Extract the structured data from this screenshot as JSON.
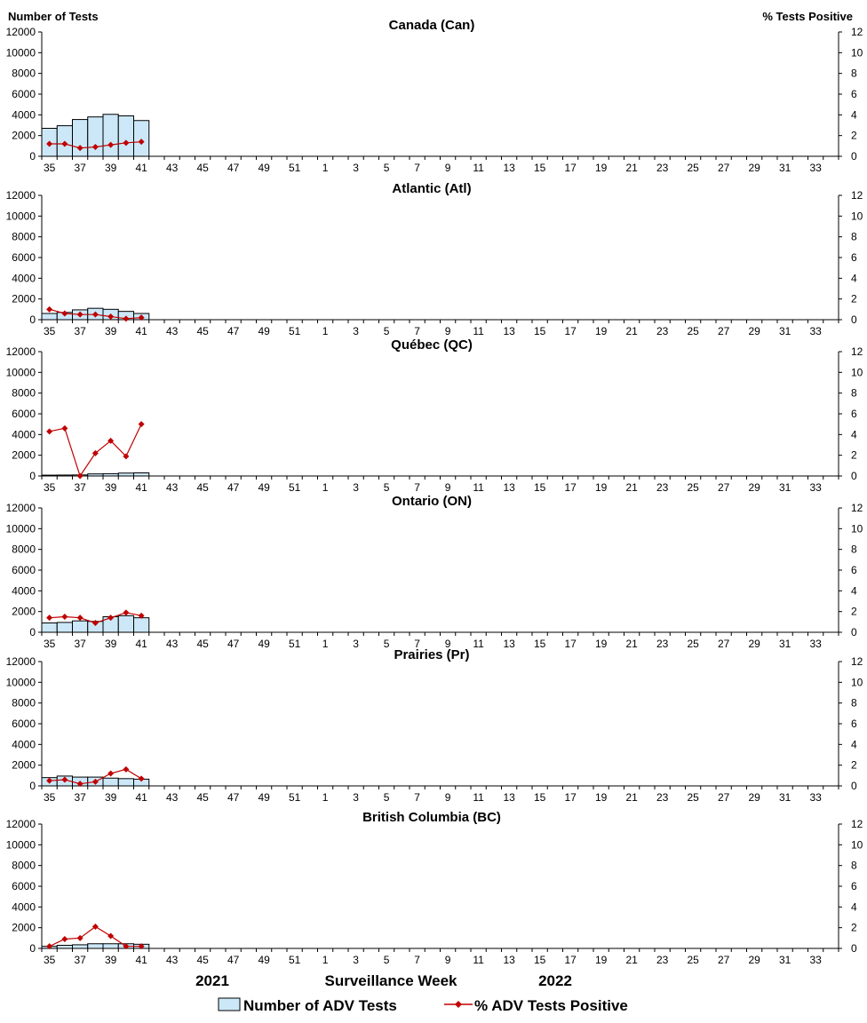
{
  "left_axis_title": "Number of Tests",
  "right_axis_title": "%  Tests Positive",
  "xlabel": "Surveillance Week",
  "year_labels": [
    "2021",
    "2022"
  ],
  "legend": [
    {
      "label": "Number of ADV Tests",
      "symbol": "bar"
    },
    {
      "label": "% ADV Tests Positive",
      "symbol": "line-diamond"
    }
  ],
  "colors": {
    "bar_fill": "#cce8f8",
    "bar_stroke": "#000000",
    "line": "#c00000",
    "axis": "#000000"
  },
  "chart_data": [
    {
      "type": "bar+line",
      "title": "Canada (Can)",
      "weeks": [
        35,
        36,
        37,
        38,
        39,
        40,
        41,
        42,
        43,
        44,
        45,
        46,
        47,
        48,
        49,
        50,
        51,
        52,
        1,
        2,
        3,
        4,
        5,
        6,
        7,
        8,
        9,
        10,
        11,
        12,
        13,
        14,
        15,
        16,
        17,
        18,
        19,
        20,
        21,
        22,
        23,
        24,
        25,
        26,
        27,
        28,
        29,
        30,
        31,
        32,
        33,
        34
      ],
      "xtick_labels": [
        "35",
        "37",
        "39",
        "41",
        "43",
        "45",
        "47",
        "49",
        "51",
        "1",
        "3",
        "5",
        "7",
        "9",
        "11",
        "13",
        "15",
        "17",
        "19",
        "21",
        "23",
        "25",
        "27",
        "29",
        "31",
        "33"
      ],
      "ylim_left": [
        0,
        12000
      ],
      "yticks_left": [
        0,
        2000,
        4000,
        6000,
        8000,
        10000,
        12000
      ],
      "ylim_right": [
        0,
        12
      ],
      "yticks_right": [
        0,
        2,
        4,
        6,
        8,
        10,
        12
      ],
      "series": [
        {
          "name": "Number of ADV Tests",
          "type": "bar",
          "values": [
            2700,
            2950,
            3550,
            3800,
            4050,
            3900,
            3450
          ]
        },
        {
          "name": "% ADV Tests Positive",
          "type": "line",
          "values": [
            1.2,
            1.2,
            0.8,
            0.9,
            1.1,
            1.3,
            1.4
          ]
        }
      ]
    },
    {
      "type": "bar+line",
      "title": "Atlantic (Atl)",
      "weeks": [
        35,
        36,
        37,
        38,
        39,
        40,
        41,
        42,
        43,
        44,
        45,
        46,
        47,
        48,
        49,
        50,
        51,
        52,
        1,
        2,
        3,
        4,
        5,
        6,
        7,
        8,
        9,
        10,
        11,
        12,
        13,
        14,
        15,
        16,
        17,
        18,
        19,
        20,
        21,
        22,
        23,
        24,
        25,
        26,
        27,
        28,
        29,
        30,
        31,
        32,
        33,
        34
      ],
      "xtick_labels": [
        "35",
        "37",
        "39",
        "41",
        "43",
        "45",
        "47",
        "49",
        "51",
        "1",
        "3",
        "5",
        "7",
        "9",
        "11",
        "13",
        "15",
        "17",
        "19",
        "21",
        "23",
        "25",
        "27",
        "29",
        "31",
        "33"
      ],
      "ylim_left": [
        0,
        12000
      ],
      "yticks_left": [
        0,
        2000,
        4000,
        6000,
        8000,
        10000,
        12000
      ],
      "ylim_right": [
        0,
        12
      ],
      "yticks_right": [
        0,
        2,
        4,
        6,
        8,
        10,
        12
      ],
      "series": [
        {
          "name": "Number of ADV Tests",
          "type": "bar",
          "values": [
            600,
            700,
            950,
            1100,
            1000,
            800,
            600
          ]
        },
        {
          "name": "% ADV Tests Positive",
          "type": "line",
          "values": [
            1.0,
            0.6,
            0.5,
            0.5,
            0.3,
            0.1,
            0.2
          ]
        }
      ]
    },
    {
      "type": "bar+line",
      "title": "Québec (QC)",
      "weeks": [
        35,
        36,
        37,
        38,
        39,
        40,
        41,
        42,
        43,
        44,
        45,
        46,
        47,
        48,
        49,
        50,
        51,
        52,
        1,
        2,
        3,
        4,
        5,
        6,
        7,
        8,
        9,
        10,
        11,
        12,
        13,
        14,
        15,
        16,
        17,
        18,
        19,
        20,
        21,
        22,
        23,
        24,
        25,
        26,
        27,
        28,
        29,
        30,
        31,
        32,
        33,
        34
      ],
      "xtick_labels": [
        "35",
        "37",
        "39",
        "41",
        "43",
        "45",
        "47",
        "49",
        "51",
        "1",
        "3",
        "5",
        "7",
        "9",
        "11",
        "13",
        "15",
        "17",
        "19",
        "21",
        "23",
        "25",
        "27",
        "29",
        "31",
        "33"
      ],
      "ylim_left": [
        0,
        12000
      ],
      "yticks_left": [
        0,
        2000,
        4000,
        6000,
        8000,
        10000,
        12000
      ],
      "ylim_right": [
        0,
        12
      ],
      "yticks_right": [
        0,
        2,
        4,
        6,
        8,
        10,
        12
      ],
      "series": [
        {
          "name": "Number of ADV Tests",
          "type": "bar",
          "values": [
            80,
            90,
            100,
            200,
            220,
            280,
            300
          ]
        },
        {
          "name": "% ADV Tests Positive",
          "type": "line",
          "values": [
            4.3,
            4.6,
            0.0,
            2.2,
            3.4,
            1.9,
            5.0
          ]
        }
      ]
    },
    {
      "type": "bar+line",
      "title": "Ontario (ON)",
      "weeks": [
        35,
        36,
        37,
        38,
        39,
        40,
        41,
        42,
        43,
        44,
        45,
        46,
        47,
        48,
        49,
        50,
        51,
        52,
        1,
        2,
        3,
        4,
        5,
        6,
        7,
        8,
        9,
        10,
        11,
        12,
        13,
        14,
        15,
        16,
        17,
        18,
        19,
        20,
        21,
        22,
        23,
        24,
        25,
        26,
        27,
        28,
        29,
        30,
        31,
        32,
        33,
        34
      ],
      "xtick_labels": [
        "35",
        "37",
        "39",
        "41",
        "43",
        "45",
        "47",
        "49",
        "51",
        "1",
        "3",
        "5",
        "7",
        "9",
        "11",
        "13",
        "15",
        "17",
        "19",
        "21",
        "23",
        "25",
        "27",
        "29",
        "31",
        "33"
      ],
      "ylim_left": [
        0,
        12000
      ],
      "yticks_left": [
        0,
        2000,
        4000,
        6000,
        8000,
        10000,
        12000
      ],
      "ylim_right": [
        0,
        12
      ],
      "yticks_right": [
        0,
        2,
        4,
        6,
        8,
        10,
        12
      ],
      "series": [
        {
          "name": "Number of ADV Tests",
          "type": "bar",
          "values": [
            900,
            950,
            1100,
            1050,
            1500,
            1600,
            1400
          ]
        },
        {
          "name": "% ADV Tests Positive",
          "type": "line",
          "values": [
            1.4,
            1.5,
            1.4,
            0.9,
            1.4,
            1.9,
            1.6
          ]
        }
      ]
    },
    {
      "type": "bar+line",
      "title": "Prairies (Pr)",
      "weeks": [
        35,
        36,
        37,
        38,
        39,
        40,
        41,
        42,
        43,
        44,
        45,
        46,
        47,
        48,
        49,
        50,
        51,
        52,
        1,
        2,
        3,
        4,
        5,
        6,
        7,
        8,
        9,
        10,
        11,
        12,
        13,
        14,
        15,
        16,
        17,
        18,
        19,
        20,
        21,
        22,
        23,
        24,
        25,
        26,
        27,
        28,
        29,
        30,
        31,
        32,
        33,
        34
      ],
      "xtick_labels": [
        "35",
        "37",
        "39",
        "41",
        "43",
        "45",
        "47",
        "49",
        "51",
        "1",
        "3",
        "5",
        "7",
        "9",
        "11",
        "13",
        "15",
        "17",
        "19",
        "21",
        "23",
        "25",
        "27",
        "29",
        "31",
        "33"
      ],
      "ylim_left": [
        0,
        12000
      ],
      "yticks_left": [
        0,
        2000,
        4000,
        6000,
        8000,
        10000,
        12000
      ],
      "ylim_right": [
        0,
        12
      ],
      "yticks_right": [
        0,
        2,
        4,
        6,
        8,
        10,
        12
      ],
      "series": [
        {
          "name": "Number of ADV Tests",
          "type": "bar",
          "values": [
            800,
            950,
            850,
            850,
            750,
            700,
            650
          ]
        },
        {
          "name": "% ADV Tests Positive",
          "type": "line",
          "values": [
            0.5,
            0.6,
            0.2,
            0.4,
            1.2,
            1.6,
            0.7
          ]
        }
      ]
    },
    {
      "type": "bar+line",
      "title": "British Columbia (BC)",
      "weeks": [
        35,
        36,
        37,
        38,
        39,
        40,
        41,
        42,
        43,
        44,
        45,
        46,
        47,
        48,
        49,
        50,
        51,
        52,
        1,
        2,
        3,
        4,
        5,
        6,
        7,
        8,
        9,
        10,
        11,
        12,
        13,
        14,
        15,
        16,
        17,
        18,
        19,
        20,
        21,
        22,
        23,
        24,
        25,
        26,
        27,
        28,
        29,
        30,
        31,
        32,
        33,
        34
      ],
      "xtick_labels": [
        "35",
        "37",
        "39",
        "41",
        "43",
        "45",
        "47",
        "49",
        "51",
        "1",
        "3",
        "5",
        "7",
        "9",
        "11",
        "13",
        "15",
        "17",
        "19",
        "21",
        "23",
        "25",
        "27",
        "29",
        "31",
        "33"
      ],
      "ylim_left": [
        0,
        12000
      ],
      "yticks_left": [
        0,
        2000,
        4000,
        6000,
        8000,
        10000,
        12000
      ],
      "ylim_right": [
        0,
        12
      ],
      "yticks_right": [
        0,
        2,
        4,
        6,
        8,
        10,
        12
      ],
      "series": [
        {
          "name": "Number of ADV Tests",
          "type": "bar",
          "values": [
            200,
            300,
            350,
            450,
            450,
            450,
            400
          ]
        },
        {
          "name": "% ADV Tests Positive",
          "type": "line",
          "values": [
            0.2,
            0.9,
            1.0,
            2.1,
            1.2,
            0.2,
            0.2
          ]
        }
      ]
    }
  ]
}
